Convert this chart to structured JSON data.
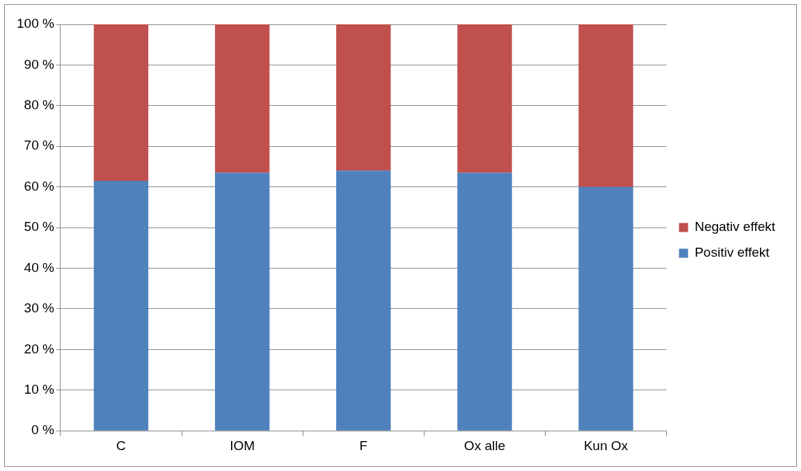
{
  "chart_data": {
    "type": "bar",
    "stacked": true,
    "categories": [
      "C",
      "IOM",
      "F",
      "Ox alle",
      "Kun Ox"
    ],
    "series": [
      {
        "name": "Positiv effekt",
        "color": "#4f81bd",
        "values": [
          61.5,
          63.5,
          64,
          63.5,
          60
        ]
      },
      {
        "name": "Negativ effekt",
        "color": "#c0504d",
        "values": [
          38.5,
          36.5,
          36,
          36.5,
          40
        ]
      }
    ],
    "ylim": [
      0,
      100
    ],
    "yticks": [
      {
        "value": 0,
        "label": "0 %"
      },
      {
        "value": 10,
        "label": "10 %"
      },
      {
        "value": 20,
        "label": "20 %"
      },
      {
        "value": 30,
        "label": "30 %"
      },
      {
        "value": 40,
        "label": "40 %"
      },
      {
        "value": 50,
        "label": "50 %"
      },
      {
        "value": 60,
        "label": "60 %"
      },
      {
        "value": 70,
        "label": "70 %"
      },
      {
        "value": 80,
        "label": "80 %"
      },
      {
        "value": 90,
        "label": "90 %"
      },
      {
        "value": 100,
        "label": "100 %"
      }
    ],
    "grid": "y",
    "legend": "right"
  }
}
